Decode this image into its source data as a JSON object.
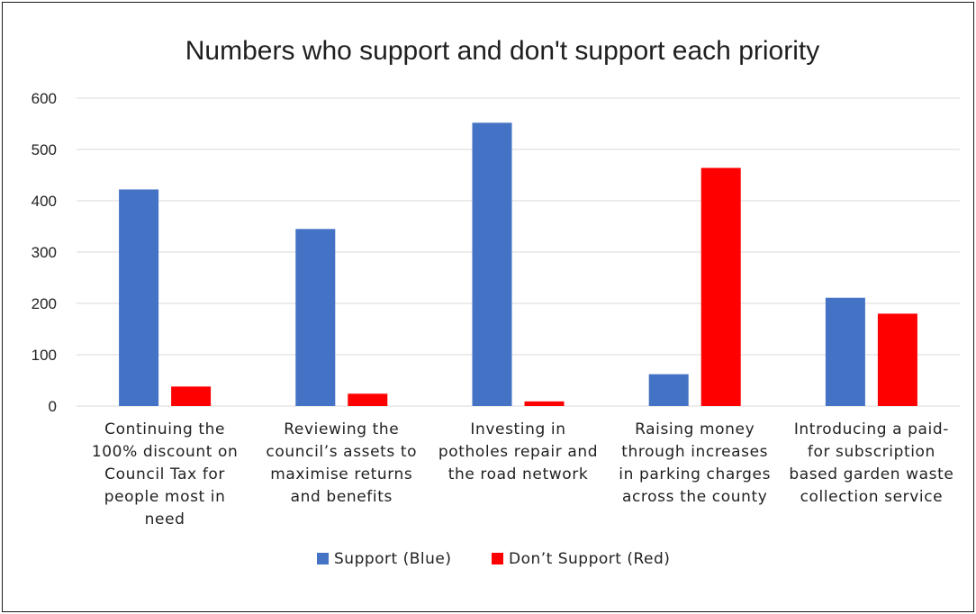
{
  "chart_data": {
    "type": "bar",
    "title": "Numbers who support and don't support each priority",
    "xlabel": "",
    "ylabel": "",
    "ylim": [
      0,
      600
    ],
    "yticks": [
      "0",
      "100",
      "200",
      "300",
      "400",
      "500",
      "600"
    ],
    "grid": true,
    "legend_position": "bottom",
    "categories": [
      [
        "Continuing the",
        "100% discount on",
        "Council Tax for",
        "people most in",
        "need"
      ],
      [
        "Reviewing the",
        "council’s assets to",
        "maximise returns",
        "and benefits"
      ],
      [
        "Investing in",
        "potholes repair and",
        "the road network"
      ],
      [
        "Raising money",
        "through increases",
        "in parking charges",
        "across the county"
      ],
      [
        "Introducing a paid-",
        "for subscription",
        "based garden waste",
        "collection service"
      ]
    ],
    "series": [
      {
        "name": "Support (Blue)",
        "color": "#4472c4",
        "values": [
          422,
          345,
          552,
          62,
          211
        ]
      },
      {
        "name": "Don’t Support (Red)",
        "color": "#ff0000",
        "values": [
          38,
          24,
          9,
          464,
          180
        ]
      }
    ]
  }
}
